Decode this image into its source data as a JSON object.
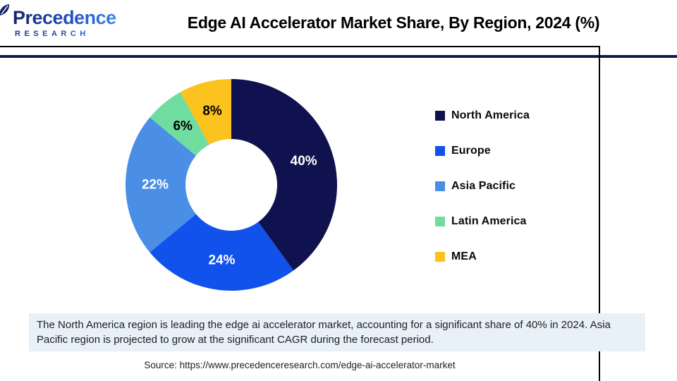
{
  "header": {
    "logo": {
      "brand": "Precedence",
      "brand_sub": "RESEARCH"
    },
    "title": "Edge AI Accelerator Market Share, By Region, 2024 (%)"
  },
  "chart_data": {
    "type": "pie",
    "subtype": "donut",
    "title": "Edge AI Accelerator Market Share, By Region, 2024 (%)",
    "categories": [
      "North America",
      "Europe",
      "Asia Pacific",
      "Latin America",
      "MEA"
    ],
    "values": [
      40,
      24,
      22,
      6,
      8
    ],
    "unit": "%",
    "data_labels": [
      "40%",
      "24%",
      "22%",
      "6%",
      "8%"
    ],
    "colors": [
      "#101250",
      "#1151ec",
      "#4a8ee6",
      "#70dda0",
      "#fcc21d"
    ],
    "data_label_colors": [
      "#ffffff",
      "#ffffff",
      "#ffffff",
      "#000000",
      "#000000"
    ],
    "start_angle_deg": 0,
    "direction": "clockwise",
    "inner_radius_ratio": 0.43,
    "legend_position": "right"
  },
  "note": {
    "text": "The North America region is leading the edge ai accelerator market, accounting for a significant share of 40% in 2024. Asia Pacific region is projected to grow at the significant CAGR during the forecast period."
  },
  "source": {
    "text": "Source: https://www.precedenceresearch.com/edge-ai-accelerator-market"
  },
  "style": {
    "accent_navy": "#101a4e",
    "note_bg": "#e8f0f8"
  }
}
